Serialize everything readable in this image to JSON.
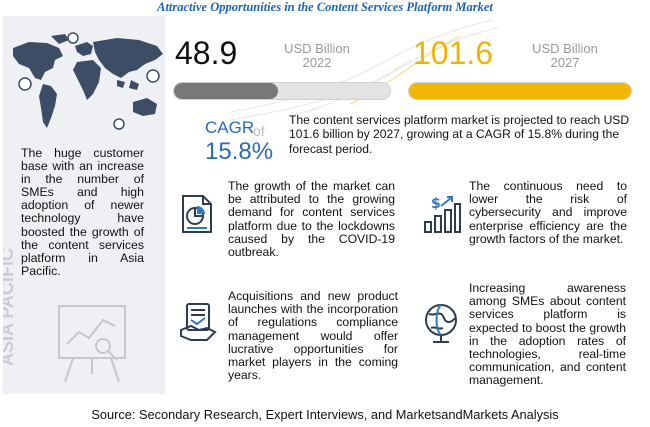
{
  "title": "Attractive Opportunities in the Content Services Platform Market",
  "left_panel": {
    "text": "The huge customer base with an increase in the number of SMEs and high adoption of newer technology have boosted the growth of the content services platform in Asia Pacific.",
    "region_label": "ASIA PACIFIC"
  },
  "market": {
    "value_2022": "48.9",
    "unit_2022_line1": "USD Billion",
    "unit_2022_line2": "2022",
    "value_2027": "101.6",
    "unit_2027_line1": "USD Billion",
    "unit_2027_line2": "2027",
    "bar_2022_fraction": 0.48,
    "bar_2027_fraction": 1.0,
    "cagr_label": "CAGR",
    "cagr_of": "of",
    "cagr_value": "15.8%",
    "summary": "The content services platform market is projected to reach USD 101.6 billion by 2027, growing at a CAGR of 15.8% during the forecast period."
  },
  "facts": [
    {
      "text": "The growth of the market can be attributed to the growing demand for content services platform due to the lockdowns caused by the COVID-19 outbreak.",
      "icon": "document-chart-icon"
    },
    {
      "text": "The continuous need to lower the risk of cybersecurity and improve enterprise efficiency are the growth factors of the market.",
      "icon": "dollar-growth-chart-icon"
    },
    {
      "text": "Acquisitions and new product launches with the incorporation of regulations compliance management would offer lucrative opportunities for market players in the coming years.",
      "icon": "handshake-icon"
    },
    {
      "text": "Increasing awareness among SMEs about content services platform is expected to boost the growth in the adoption rates of technologies, real-time communication, and content management.",
      "icon": "globe-icon"
    }
  ],
  "colors": {
    "title": "#1d64b8",
    "accent_yellow": "#f2b705",
    "cagr_blue": "#2a6ab8",
    "panel_bg": "#eef0f3"
  },
  "source": "Source: Secondary Research, Expert Interviews, and MarketsandMarkets Analysis"
}
